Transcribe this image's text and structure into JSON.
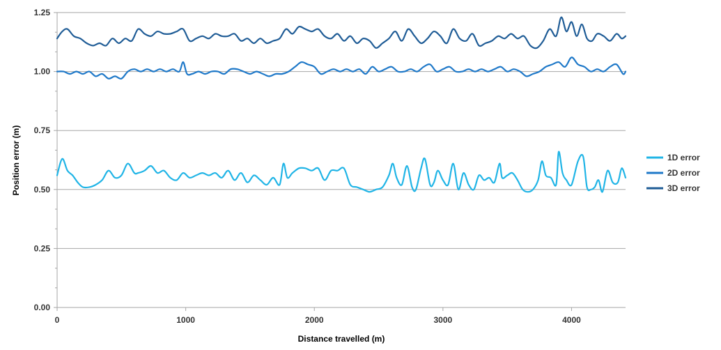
{
  "chart_data": {
    "type": "line",
    "title": "",
    "xlabel": "Distance travelled (m)",
    "ylabel": "Position error (m)",
    "xlim": [
      0,
      4420
    ],
    "ylim": [
      0,
      1.25
    ],
    "xticks": [
      0,
      1000,
      2000,
      3000,
      4000
    ],
    "xtick_labels": [
      "0",
      "1000",
      "2000",
      "3000",
      "4000"
    ],
    "yticks": [
      0,
      0.25,
      0.5,
      0.75,
      1.0,
      1.25
    ],
    "ytick_labels": [
      "0.00",
      "0.25",
      "0.50",
      "0.75",
      "1.00",
      "1.25"
    ],
    "grid": "horizontal",
    "legend_position": "right",
    "series": [
      {
        "name": "1D error",
        "color": "#1fb4e6",
        "x": [
          0,
          40,
          80,
          120,
          160,
          200,
          250,
          300,
          350,
          400,
          450,
          500,
          550,
          600,
          630,
          680,
          730,
          780,
          830,
          880,
          930,
          980,
          1030,
          1080,
          1130,
          1180,
          1230,
          1280,
          1330,
          1380,
          1430,
          1480,
          1530,
          1580,
          1630,
          1680,
          1730,
          1760,
          1790,
          1830,
          1880,
          1930,
          1980,
          2030,
          2080,
          2130,
          2180,
          2230,
          2280,
          2330,
          2380,
          2430,
          2480,
          2530,
          2580,
          2610,
          2640,
          2680,
          2720,
          2760,
          2790,
          2830,
          2860,
          2900,
          2930,
          2960,
          3000,
          3040,
          3080,
          3120,
          3160,
          3200,
          3240,
          3280,
          3320,
          3360,
          3400,
          3440,
          3460,
          3500,
          3540,
          3580,
          3620,
          3660,
          3700,
          3740,
          3770,
          3800,
          3840,
          3880,
          3900,
          3930,
          3960,
          4000,
          4050,
          4090,
          4120,
          4150,
          4180,
          4210,
          4240,
          4280,
          4320,
          4360,
          4390,
          4420
        ],
        "values": [
          0.56,
          0.63,
          0.58,
          0.56,
          0.53,
          0.51,
          0.51,
          0.52,
          0.54,
          0.58,
          0.55,
          0.56,
          0.61,
          0.57,
          0.57,
          0.58,
          0.6,
          0.57,
          0.58,
          0.55,
          0.54,
          0.57,
          0.55,
          0.56,
          0.57,
          0.56,
          0.57,
          0.55,
          0.58,
          0.54,
          0.57,
          0.53,
          0.56,
          0.54,
          0.52,
          0.55,
          0.52,
          0.61,
          0.55,
          0.57,
          0.59,
          0.59,
          0.58,
          0.59,
          0.54,
          0.58,
          0.58,
          0.59,
          0.52,
          0.51,
          0.5,
          0.49,
          0.5,
          0.51,
          0.56,
          0.61,
          0.55,
          0.52,
          0.6,
          0.51,
          0.5,
          0.59,
          0.63,
          0.52,
          0.53,
          0.58,
          0.54,
          0.52,
          0.61,
          0.5,
          0.57,
          0.52,
          0.5,
          0.56,
          0.54,
          0.55,
          0.53,
          0.61,
          0.55,
          0.56,
          0.57,
          0.54,
          0.5,
          0.49,
          0.5,
          0.54,
          0.62,
          0.56,
          0.55,
          0.52,
          0.66,
          0.57,
          0.54,
          0.52,
          0.62,
          0.64,
          0.51,
          0.5,
          0.51,
          0.54,
          0.49,
          0.58,
          0.53,
          0.53,
          0.59,
          0.55
        ]
      },
      {
        "name": "2D error",
        "color": "#1e78c8",
        "x": [
          0,
          50,
          100,
          150,
          200,
          250,
          300,
          350,
          400,
          450,
          500,
          550,
          600,
          650,
          700,
          750,
          800,
          850,
          900,
          950,
          980,
          1010,
          1050,
          1100,
          1150,
          1200,
          1250,
          1300,
          1350,
          1400,
          1450,
          1500,
          1550,
          1600,
          1650,
          1700,
          1750,
          1800,
          1850,
          1900,
          1950,
          2000,
          2050,
          2100,
          2150,
          2200,
          2250,
          2300,
          2350,
          2400,
          2450,
          2500,
          2550,
          2600,
          2650,
          2700,
          2750,
          2800,
          2850,
          2900,
          2950,
          3000,
          3050,
          3100,
          3150,
          3200,
          3250,
          3300,
          3350,
          3400,
          3450,
          3500,
          3550,
          3600,
          3650,
          3700,
          3750,
          3800,
          3850,
          3900,
          3950,
          4000,
          4050,
          4100,
          4150,
          4200,
          4250,
          4300,
          4350,
          4400,
          4420
        ],
        "values": [
          1.0,
          1.0,
          0.99,
          1.0,
          0.99,
          1.0,
          0.98,
          0.99,
          0.97,
          0.98,
          0.97,
          1.0,
          1.01,
          1.0,
          1.01,
          1.0,
          1.01,
          1.0,
          1.01,
          1.0,
          1.04,
          0.99,
          0.99,
          1.0,
          0.99,
          1.0,
          1.0,
          0.99,
          1.01,
          1.01,
          1.0,
          0.99,
          1.0,
          0.99,
          0.98,
          0.99,
          0.99,
          1.0,
          1.02,
          1.04,
          1.03,
          1.02,
          0.99,
          1.0,
          1.01,
          1.0,
          1.01,
          1.0,
          1.01,
          0.99,
          1.02,
          1.0,
          1.01,
          1.02,
          1.0,
          1.0,
          1.01,
          1.0,
          1.02,
          1.03,
          1.0,
          1.01,
          1.02,
          1.0,
          1.0,
          1.01,
          1.0,
          1.01,
          1.0,
          1.01,
          1.02,
          1.0,
          1.01,
          1.0,
          0.98,
          0.99,
          1.0,
          1.02,
          1.03,
          1.04,
          1.02,
          1.06,
          1.03,
          1.02,
          1.0,
          1.01,
          1.0,
          1.02,
          1.03,
          0.99,
          1.0
        ]
      },
      {
        "name": "3D error",
        "color": "#1f5c96",
        "x": [
          0,
          40,
          80,
          130,
          180,
          230,
          280,
          330,
          380,
          430,
          480,
          530,
          580,
          630,
          680,
          730,
          780,
          830,
          880,
          930,
          980,
          1030,
          1080,
          1130,
          1180,
          1230,
          1280,
          1330,
          1380,
          1430,
          1480,
          1530,
          1580,
          1630,
          1680,
          1730,
          1780,
          1830,
          1880,
          1930,
          1980,
          2030,
          2080,
          2130,
          2180,
          2230,
          2280,
          2330,
          2380,
          2430,
          2480,
          2530,
          2580,
          2630,
          2680,
          2730,
          2780,
          2830,
          2880,
          2930,
          2980,
          3030,
          3080,
          3130,
          3180,
          3230,
          3280,
          3330,
          3380,
          3430,
          3480,
          3530,
          3580,
          3630,
          3680,
          3730,
          3780,
          3830,
          3880,
          3920,
          3960,
          4000,
          4040,
          4080,
          4120,
          4160,
          4200,
          4250,
          4300,
          4350,
          4390,
          4420
        ],
        "values": [
          1.14,
          1.17,
          1.18,
          1.15,
          1.14,
          1.12,
          1.11,
          1.12,
          1.11,
          1.14,
          1.12,
          1.14,
          1.13,
          1.18,
          1.16,
          1.15,
          1.17,
          1.16,
          1.16,
          1.17,
          1.18,
          1.13,
          1.14,
          1.15,
          1.14,
          1.16,
          1.15,
          1.15,
          1.16,
          1.13,
          1.14,
          1.12,
          1.14,
          1.12,
          1.13,
          1.14,
          1.18,
          1.16,
          1.19,
          1.18,
          1.17,
          1.18,
          1.15,
          1.14,
          1.16,
          1.13,
          1.15,
          1.12,
          1.14,
          1.13,
          1.1,
          1.12,
          1.14,
          1.17,
          1.13,
          1.18,
          1.15,
          1.12,
          1.14,
          1.17,
          1.15,
          1.12,
          1.18,
          1.14,
          1.13,
          1.16,
          1.11,
          1.12,
          1.13,
          1.15,
          1.14,
          1.16,
          1.14,
          1.15,
          1.11,
          1.1,
          1.13,
          1.18,
          1.15,
          1.23,
          1.17,
          1.21,
          1.15,
          1.2,
          1.14,
          1.13,
          1.16,
          1.15,
          1.13,
          1.16,
          1.14,
          1.15
        ]
      }
    ]
  }
}
